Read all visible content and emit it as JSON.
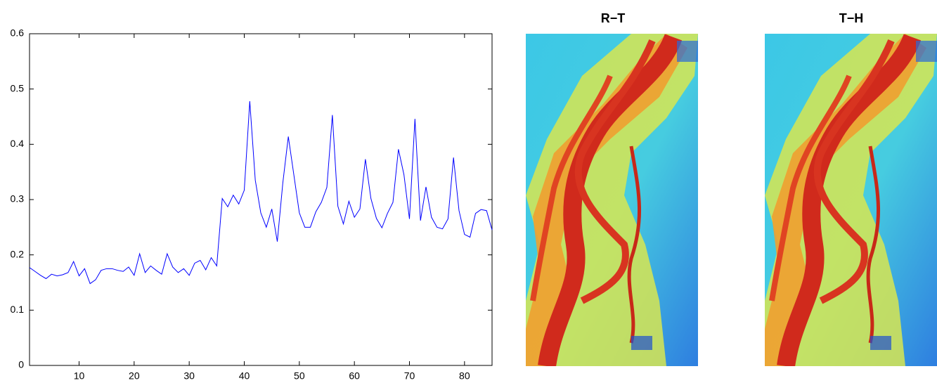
{
  "chart_data": {
    "type": "line",
    "x": [
      1,
      2,
      3,
      4,
      5,
      6,
      7,
      8,
      9,
      10,
      11,
      12,
      13,
      14,
      15,
      16,
      17,
      18,
      19,
      20,
      21,
      22,
      23,
      24,
      25,
      26,
      27,
      28,
      29,
      30,
      31,
      32,
      33,
      34,
      35,
      36,
      37,
      38,
      39,
      40,
      41,
      42,
      43,
      44,
      45,
      46,
      47,
      48,
      49,
      50,
      51,
      52,
      53,
      54,
      55,
      56,
      57,
      58,
      59,
      60,
      61,
      62,
      63,
      64,
      65,
      66,
      67,
      68,
      69,
      70,
      71,
      72,
      73,
      74,
      75,
      76,
      77,
      78,
      79,
      80,
      81,
      82,
      83,
      84,
      85
    ],
    "values": [
      0.177,
      0.17,
      0.163,
      0.157,
      0.165,
      0.162,
      0.164,
      0.168,
      0.188,
      0.162,
      0.175,
      0.148,
      0.155,
      0.172,
      0.175,
      0.175,
      0.172,
      0.17,
      0.178,
      0.163,
      0.202,
      0.168,
      0.18,
      0.172,
      0.165,
      0.202,
      0.178,
      0.168,
      0.175,
      0.163,
      0.185,
      0.19,
      0.173,
      0.195,
      0.18,
      0.302,
      0.287,
      0.308,
      0.292,
      0.317,
      0.478,
      0.335,
      0.276,
      0.25,
      0.283,
      0.224,
      0.33,
      0.414,
      0.345,
      0.276,
      0.25,
      0.25,
      0.278,
      0.295,
      0.322,
      0.453,
      0.288,
      0.256,
      0.297,
      0.268,
      0.283,
      0.373,
      0.302,
      0.266,
      0.249,
      0.275,
      0.295,
      0.391,
      0.345,
      0.265,
      0.446,
      0.262,
      0.323,
      0.268,
      0.25,
      0.247,
      0.265,
      0.376,
      0.28,
      0.237,
      0.232,
      0.275,
      0.282,
      0.28,
      0.245
    ],
    "color": "#0000ff",
    "xlim": [
      1,
      85
    ],
    "xticks": [
      10,
      20,
      30,
      40,
      50,
      60,
      70,
      80
    ],
    "ylim": [
      0,
      0.6
    ],
    "yticks": [
      0,
      0.1,
      0.2,
      0.3,
      0.4,
      0.5,
      0.6
    ]
  },
  "images": [
    {
      "title": "R−T"
    },
    {
      "title": "T−H"
    }
  ]
}
